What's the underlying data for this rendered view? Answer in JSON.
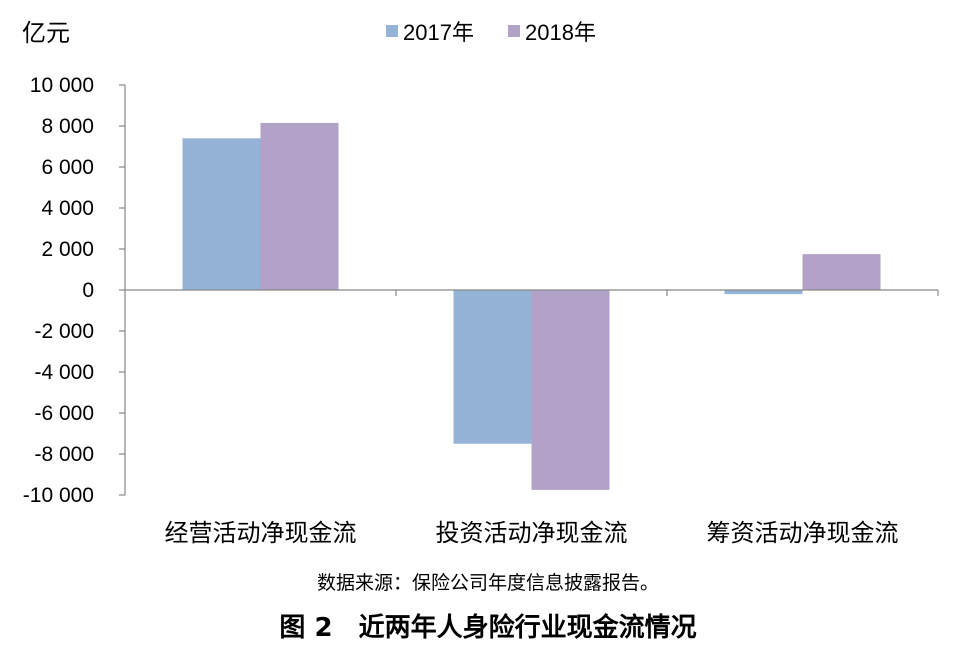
{
  "chart_data": {
    "type": "bar",
    "unit": "亿元",
    "categories": [
      "经营活动净现金流",
      "投资活动净现金流",
      "筹资活动净现金流"
    ],
    "series": [
      {
        "name": "2017年",
        "color": "#95B3D7",
        "values": [
          7400,
          -7500,
          -200
        ]
      },
      {
        "name": "2018年",
        "color": "#B3A2C7",
        "values": [
          8150,
          -9750,
          1750
        ]
      }
    ],
    "ylim": [
      -10000,
      10000
    ],
    "yticks": [
      10000,
      8000,
      6000,
      4000,
      2000,
      0,
      -2000,
      -4000,
      -6000,
      -8000,
      -10000
    ],
    "ytick_labels": [
      "10 000",
      "8 000",
      "6 000",
      "4 000",
      "2 000",
      "0",
      "-2 000",
      "-4 000",
      "-6 000",
      "-8 000",
      "-10 000"
    ],
    "grid": false,
    "legend": "top-center"
  },
  "source": "数据来源：保险公司年度信息披露报告。",
  "figure_title": "图 2　近两年人身险行业现金流情况"
}
